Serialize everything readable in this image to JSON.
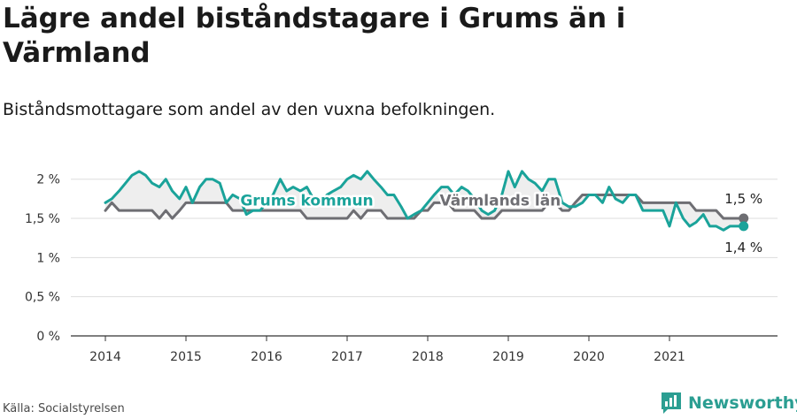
{
  "title": "Lägre andel biståndstagare i Grums än i Värmland",
  "subtitle": "Biståndsmottagare som andel av den vuxna befolkningen.",
  "source": "Källa: Socialstyrelsen",
  "brand": "Newsworthy",
  "colors": {
    "grums": "#1aa39a",
    "varmland": "#6e6e73",
    "fill": "#eeeeee",
    "grid": "#dddddd",
    "brand": "#2b9e92"
  },
  "chart_data": {
    "type": "line",
    "ylim": [
      0,
      2.2
    ],
    "y_ticks": [
      0,
      0.5,
      1,
      1.5,
      2
    ],
    "y_tick_labels": [
      "0 %",
      "0,5 %",
      "1 %",
      "1,5 %",
      "2 %"
    ],
    "x_ticks": [
      2014,
      2015,
      2016,
      2017,
      2018,
      2019,
      2020,
      2021
    ],
    "x_tick_labels": [
      "2014",
      "2015",
      "2016",
      "2017",
      "2018",
      "2019",
      "2020",
      "2021"
    ],
    "x_range": [
      2013.6,
      2022.3
    ],
    "grid": true,
    "series": [
      {
        "name": "Grums kommun",
        "end_label": "1,4 %",
        "points": [
          [
            2014.0,
            1.7
          ],
          [
            2014.08,
            1.75
          ],
          [
            2014.17,
            1.85
          ],
          [
            2014.25,
            1.95
          ],
          [
            2014.33,
            2.05
          ],
          [
            2014.42,
            2.1
          ],
          [
            2014.5,
            2.05
          ],
          [
            2014.58,
            1.95
          ],
          [
            2014.67,
            1.9
          ],
          [
            2014.75,
            2.0
          ],
          [
            2014.83,
            1.85
          ],
          [
            2014.92,
            1.75
          ],
          [
            2015.0,
            1.9
          ],
          [
            2015.08,
            1.7
          ],
          [
            2015.17,
            1.9
          ],
          [
            2015.25,
            2.0
          ],
          [
            2015.33,
            2.0
          ],
          [
            2015.42,
            1.95
          ],
          [
            2015.5,
            1.7
          ],
          [
            2015.58,
            1.8
          ],
          [
            2015.67,
            1.75
          ],
          [
            2015.75,
            1.55
          ],
          [
            2015.83,
            1.6
          ],
          [
            2015.92,
            1.6
          ],
          [
            2016.0,
            1.7
          ],
          [
            2016.08,
            1.8
          ],
          [
            2016.17,
            2.0
          ],
          [
            2016.25,
            1.85
          ],
          [
            2016.33,
            1.9
          ],
          [
            2016.42,
            1.85
          ],
          [
            2016.5,
            1.9
          ],
          [
            2016.58,
            1.75
          ],
          [
            2016.67,
            1.7
          ],
          [
            2016.75,
            1.8
          ],
          [
            2016.83,
            1.85
          ],
          [
            2016.92,
            1.9
          ],
          [
            2017.0,
            2.0
          ],
          [
            2017.08,
            2.05
          ],
          [
            2017.17,
            2.0
          ],
          [
            2017.25,
            2.1
          ],
          [
            2017.33,
            2.0
          ],
          [
            2017.42,
            1.9
          ],
          [
            2017.5,
            1.8
          ],
          [
            2017.58,
            1.8
          ],
          [
            2017.67,
            1.65
          ],
          [
            2017.75,
            1.5
          ],
          [
            2017.83,
            1.55
          ],
          [
            2017.92,
            1.6
          ],
          [
            2018.0,
            1.7
          ],
          [
            2018.08,
            1.8
          ],
          [
            2018.17,
            1.9
          ],
          [
            2018.25,
            1.9
          ],
          [
            2018.33,
            1.8
          ],
          [
            2018.42,
            1.9
          ],
          [
            2018.5,
            1.85
          ],
          [
            2018.58,
            1.75
          ],
          [
            2018.67,
            1.6
          ],
          [
            2018.75,
            1.55
          ],
          [
            2018.83,
            1.6
          ],
          [
            2018.92,
            1.8
          ],
          [
            2019.0,
            2.1
          ],
          [
            2019.08,
            1.9
          ],
          [
            2019.17,
            2.1
          ],
          [
            2019.25,
            2.0
          ],
          [
            2019.33,
            1.95
          ],
          [
            2019.42,
            1.85
          ],
          [
            2019.5,
            2.0
          ],
          [
            2019.58,
            2.0
          ],
          [
            2019.67,
            1.7
          ],
          [
            2019.75,
            1.65
          ],
          [
            2019.83,
            1.65
          ],
          [
            2019.92,
            1.7
          ],
          [
            2020.0,
            1.8
          ],
          [
            2020.08,
            1.8
          ],
          [
            2020.17,
            1.7
          ],
          [
            2020.25,
            1.9
          ],
          [
            2020.33,
            1.75
          ],
          [
            2020.42,
            1.7
          ],
          [
            2020.5,
            1.8
          ],
          [
            2020.58,
            1.8
          ],
          [
            2020.67,
            1.6
          ],
          [
            2020.75,
            1.6
          ],
          [
            2020.83,
            1.6
          ],
          [
            2020.92,
            1.6
          ],
          [
            2021.0,
            1.4
          ],
          [
            2021.08,
            1.7
          ],
          [
            2021.17,
            1.5
          ],
          [
            2021.25,
            1.4
          ],
          [
            2021.33,
            1.45
          ],
          [
            2021.42,
            1.55
          ],
          [
            2021.5,
            1.4
          ],
          [
            2021.58,
            1.4
          ],
          [
            2021.67,
            1.35
          ],
          [
            2021.75,
            1.4
          ],
          [
            2021.83,
            1.4
          ],
          [
            2021.92,
            1.4
          ]
        ]
      },
      {
        "name": "Värmlands län",
        "end_label": "1,5 %",
        "points": [
          [
            2014.0,
            1.6
          ],
          [
            2014.08,
            1.7
          ],
          [
            2014.17,
            1.6
          ],
          [
            2014.25,
            1.6
          ],
          [
            2014.33,
            1.6
          ],
          [
            2014.42,
            1.6
          ],
          [
            2014.5,
            1.6
          ],
          [
            2014.58,
            1.6
          ],
          [
            2014.67,
            1.5
          ],
          [
            2014.75,
            1.6
          ],
          [
            2014.83,
            1.5
          ],
          [
            2014.92,
            1.6
          ],
          [
            2015.0,
            1.7
          ],
          [
            2015.08,
            1.7
          ],
          [
            2015.17,
            1.7
          ],
          [
            2015.25,
            1.7
          ],
          [
            2015.33,
            1.7
          ],
          [
            2015.42,
            1.7
          ],
          [
            2015.5,
            1.7
          ],
          [
            2015.58,
            1.6
          ],
          [
            2015.67,
            1.6
          ],
          [
            2015.75,
            1.6
          ],
          [
            2015.83,
            1.6
          ],
          [
            2015.92,
            1.6
          ],
          [
            2016.0,
            1.6
          ],
          [
            2016.08,
            1.6
          ],
          [
            2016.17,
            1.6
          ],
          [
            2016.25,
            1.6
          ],
          [
            2016.33,
            1.6
          ],
          [
            2016.42,
            1.6
          ],
          [
            2016.5,
            1.5
          ],
          [
            2016.58,
            1.5
          ],
          [
            2016.67,
            1.5
          ],
          [
            2016.75,
            1.5
          ],
          [
            2016.83,
            1.5
          ],
          [
            2016.92,
            1.5
          ],
          [
            2017.0,
            1.5
          ],
          [
            2017.08,
            1.6
          ],
          [
            2017.17,
            1.5
          ],
          [
            2017.25,
            1.6
          ],
          [
            2017.33,
            1.6
          ],
          [
            2017.42,
            1.6
          ],
          [
            2017.5,
            1.5
          ],
          [
            2017.58,
            1.5
          ],
          [
            2017.67,
            1.5
          ],
          [
            2017.75,
            1.5
          ],
          [
            2017.83,
            1.5
          ],
          [
            2017.92,
            1.6
          ],
          [
            2018.0,
            1.6
          ],
          [
            2018.08,
            1.7
          ],
          [
            2018.17,
            1.7
          ],
          [
            2018.25,
            1.7
          ],
          [
            2018.33,
            1.6
          ],
          [
            2018.42,
            1.6
          ],
          [
            2018.5,
            1.6
          ],
          [
            2018.58,
            1.6
          ],
          [
            2018.67,
            1.5
          ],
          [
            2018.75,
            1.5
          ],
          [
            2018.83,
            1.5
          ],
          [
            2018.92,
            1.6
          ],
          [
            2019.0,
            1.6
          ],
          [
            2019.08,
            1.6
          ],
          [
            2019.17,
            1.6
          ],
          [
            2019.25,
            1.6
          ],
          [
            2019.33,
            1.6
          ],
          [
            2019.42,
            1.6
          ],
          [
            2019.5,
            1.7
          ],
          [
            2019.58,
            1.7
          ],
          [
            2019.67,
            1.6
          ],
          [
            2019.75,
            1.6
          ],
          [
            2019.83,
            1.7
          ],
          [
            2019.92,
            1.8
          ],
          [
            2020.0,
            1.8
          ],
          [
            2020.08,
            1.8
          ],
          [
            2020.17,
            1.8
          ],
          [
            2020.25,
            1.8
          ],
          [
            2020.33,
            1.8
          ],
          [
            2020.42,
            1.8
          ],
          [
            2020.5,
            1.8
          ],
          [
            2020.58,
            1.8
          ],
          [
            2020.67,
            1.7
          ],
          [
            2020.75,
            1.7
          ],
          [
            2020.83,
            1.7
          ],
          [
            2020.92,
            1.7
          ],
          [
            2021.0,
            1.7
          ],
          [
            2021.08,
            1.7
          ],
          [
            2021.17,
            1.7
          ],
          [
            2021.25,
            1.7
          ],
          [
            2021.33,
            1.6
          ],
          [
            2021.42,
            1.6
          ],
          [
            2021.5,
            1.6
          ],
          [
            2021.58,
            1.6
          ],
          [
            2021.67,
            1.5
          ],
          [
            2021.75,
            1.5
          ],
          [
            2021.83,
            1.5
          ],
          [
            2021.92,
            1.5
          ]
        ]
      }
    ],
    "inline_labels": [
      {
        "series": "Grums kommun",
        "x": 2016.5,
        "y": 1.73
      },
      {
        "series": "Värmlands län",
        "x": 2018.9,
        "y": 1.73
      }
    ]
  }
}
